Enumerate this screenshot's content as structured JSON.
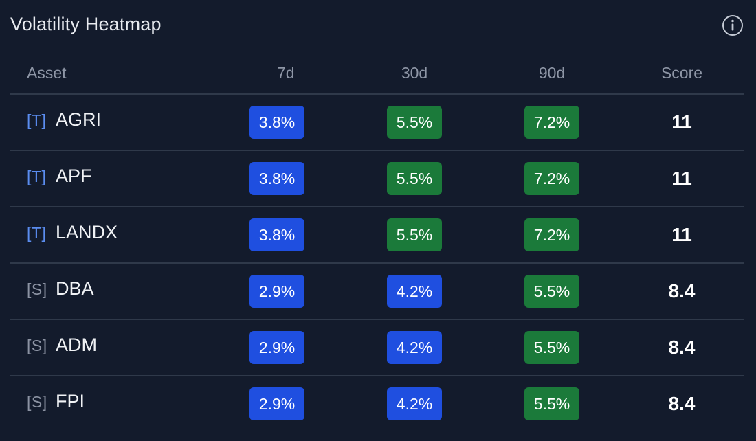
{
  "panel": {
    "title": "Volatility Heatmap",
    "info_icon": "info-icon"
  },
  "table": {
    "headers": [
      "Asset",
      "7d",
      "30d",
      "90d",
      "Score"
    ],
    "rows": [
      {
        "tag": "[T]",
        "asset": "AGRI",
        "d7": "3.8%",
        "d30": "5.5%",
        "d90": "7.2%",
        "score": "11"
      },
      {
        "tag": "[T]",
        "asset": "APF",
        "d7": "3.8%",
        "d30": "5.5%",
        "d90": "7.2%",
        "score": "11"
      },
      {
        "tag": "[T]",
        "asset": "LANDX",
        "d7": "3.8%",
        "d30": "5.5%",
        "d90": "7.2%",
        "score": "11"
      },
      {
        "tag": "[S]",
        "asset": "DBA",
        "d7": "2.9%",
        "d30": "4.2%",
        "d90": "5.5%",
        "score": "8.4"
      },
      {
        "tag": "[S]",
        "asset": "ADM",
        "d7": "2.9%",
        "d30": "4.2%",
        "d90": "5.5%",
        "score": "8.4"
      },
      {
        "tag": "[S]",
        "asset": "FPI",
        "d7": "2.9%",
        "d30": "4.2%",
        "d90": "5.5%",
        "score": "8.4"
      }
    ]
  },
  "colors": {
    "background": "#131b2c",
    "blue_cell": "#1f4fe0",
    "green_cell": "#1b7a3a",
    "tag_t": "#5b8df0",
    "tag_s": "#8c93a3",
    "divider": "#2f394a"
  }
}
